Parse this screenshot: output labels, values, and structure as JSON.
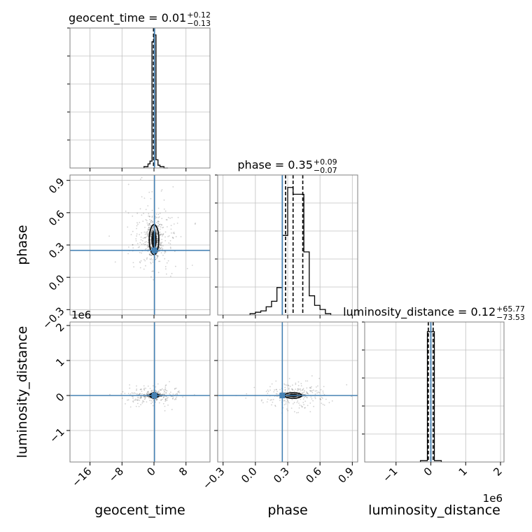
{
  "chart_data": {
    "type": "corner",
    "grid": true,
    "colors": {
      "truth": "#4682b4",
      "hist": "#000000",
      "grid": "#c0c0c0",
      "frame": "#808080"
    },
    "parameters": [
      {
        "name": "geocent_time",
        "xlabel": "geocent_time",
        "ylabel": "",
        "title": {
          "prefix": "geocent_time = 0.01",
          "sup": "+0.12",
          "sub": "−0.13"
        },
        "truth": 0.12,
        "quantiles": [
          -0.12,
          0.01,
          0.13
        ],
        "range": [
          -21,
          14
        ],
        "ticks": [
          -16,
          -8,
          0,
          8
        ],
        "tick_labels": [
          "−16",
          "−8",
          "0",
          "8"
        ],
        "hist": {
          "bins": [
            -2.5,
            -1.5,
            -1.0,
            -0.5,
            0.0,
            0.5,
            1.0,
            1.5,
            2.5,
            3.5
          ],
          "counts": [
            0.01,
            0.03,
            0.05,
            0.92,
            0.97,
            0.06,
            0.02,
            0.01,
            0.0
          ]
        },
        "hist_max": 0.97
      },
      {
        "name": "phase",
        "xlabel": "phase",
        "ylabel": "phase",
        "title": {
          "prefix": "phase = 0.35",
          "sup": "+0.09",
          "sub": "−0.07"
        },
        "truth": 0.25,
        "quantiles": [
          0.28,
          0.35,
          0.44
        ],
        "range": [
          -0.35,
          0.95
        ],
        "ticks": [
          -0.3,
          0.0,
          0.3,
          0.6,
          0.9
        ],
        "tick_labels": [
          "−0.3",
          "0.0",
          "0.3",
          "0.6",
          "0.9"
        ],
        "hist": {
          "bins": [
            -0.05,
            0.0,
            0.05,
            0.1,
            0.15,
            0.2,
            0.25,
            0.3,
            0.35,
            0.4,
            0.45,
            0.5,
            0.55,
            0.6,
            0.65,
            0.7
          ],
          "counts": [
            0.01,
            0.02,
            0.03,
            0.06,
            0.1,
            0.2,
            0.58,
            0.93,
            0.88,
            0.88,
            0.46,
            0.14,
            0.07,
            0.04,
            0.01
          ]
        },
        "hist_max": 0.93
      },
      {
        "name": "luminosity_distance",
        "xlabel": "luminosity_distance",
        "ylabel": "luminosity_distance",
        "title": {
          "prefix": "luminosity_distance = 0.12",
          "sup": "+65.77",
          "sub": "−73.53"
        },
        "truth": 0.0,
        "quantiles": [
          -0.0735,
          0.0,
          0.0658
        ],
        "offset_label": "1e6",
        "range": [
          -1.9,
          2.1
        ],
        "ticks": [
          -1,
          0,
          1,
          2
        ],
        "tick_labels": [
          "−1",
          "0",
          "1",
          "2"
        ],
        "hist": {
          "bins": [
            -0.3,
            -0.1,
            0.1,
            0.3
          ],
          "counts": [
            0.01,
            0.95,
            0.01
          ]
        },
        "hist_max": 0.95
      }
    ],
    "pairs": [
      {
        "row": 1,
        "col": 0,
        "cx": 0.01,
        "cy": 0.35,
        "sx": 0.9,
        "sy": 0.09,
        "spread_x": 3.5,
        "spread_y": 0.18,
        "contour_rx": 1.2,
        "contour_ry": 0.14
      },
      {
        "row": 2,
        "col": 0,
        "cx": 0.01,
        "cy": 0.0,
        "sx": 0.9,
        "sy": 0.02,
        "spread_x": 3.5,
        "spread_y": 0.15,
        "contour_rx": 1.0,
        "contour_ry": 0.03
      },
      {
        "row": 2,
        "col": 1,
        "cx": 0.35,
        "cy": 0.0,
        "sx": 0.05,
        "sy": 0.02,
        "spread_x": 0.15,
        "spread_y": 0.2,
        "contour_rx": 0.08,
        "contour_ry": 0.03
      }
    ]
  }
}
